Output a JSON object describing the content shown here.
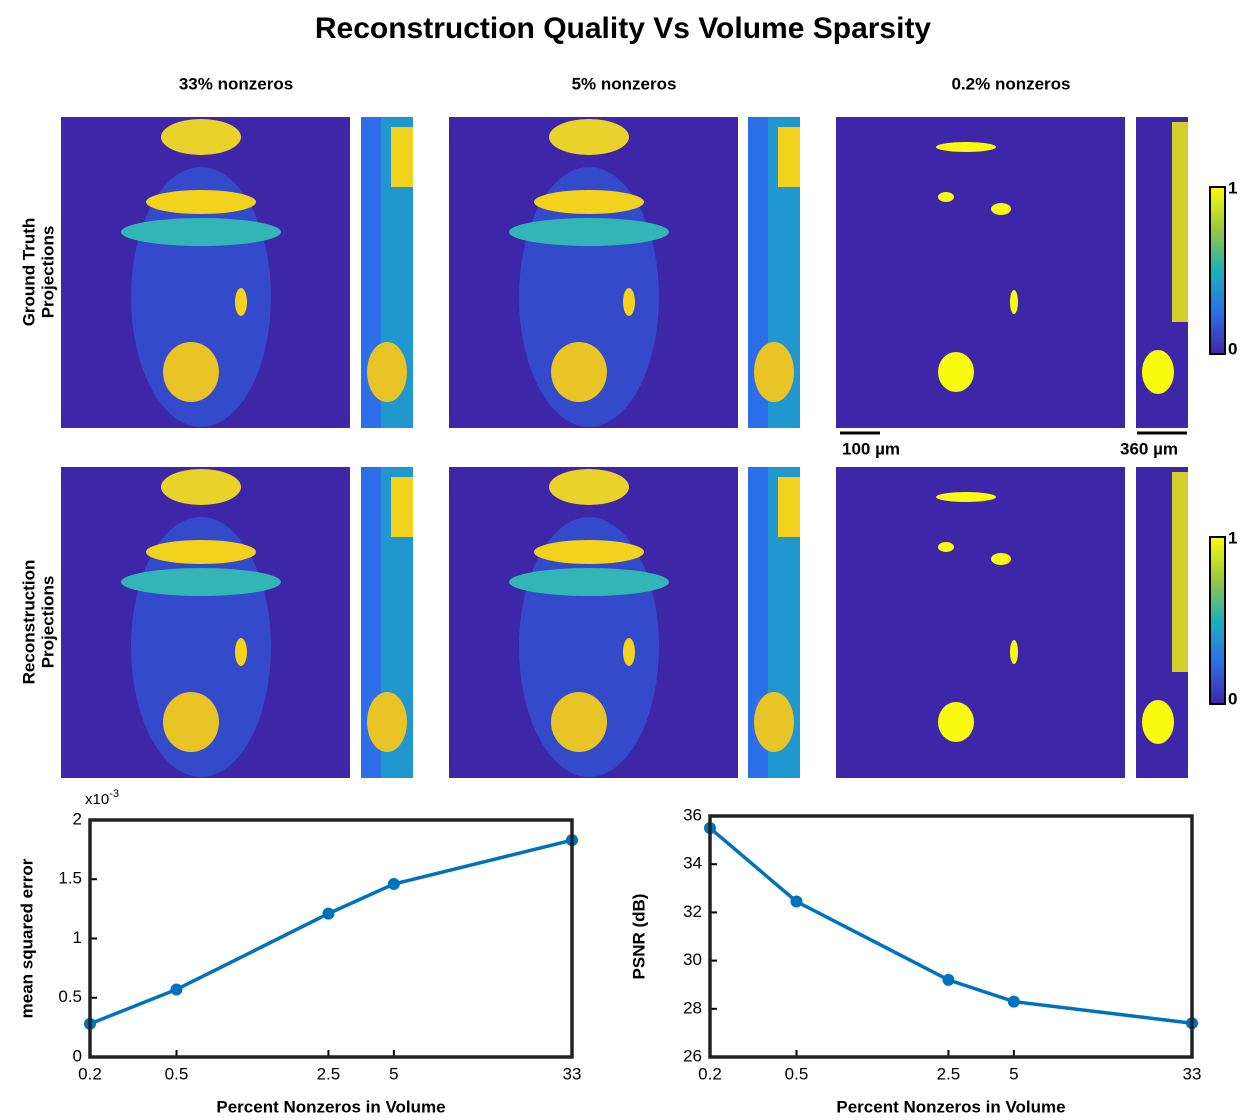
{
  "figure": {
    "title": "Reconstruction Quality Vs Volume Sparsity",
    "columns": [
      "33% nonzeros",
      "5% nonzeros",
      "0.2% nonzeros"
    ],
    "rows": [
      [
        "Ground Truth",
        "Projections"
      ],
      [
        "Reconstruction",
        "Projections"
      ]
    ],
    "scale_bars": [
      "100 µm",
      "360 µm"
    ],
    "colorbars": [
      {
        "ticks": [
          0,
          1
        ]
      },
      {
        "ticks": [
          0,
          1
        ]
      }
    ]
  },
  "chart_data": [
    {
      "type": "line",
      "y_label": "mean squared error",
      "x_label": "Percent Nonzeros in Volume",
      "y_multiplier": "x10",
      "y_multiplier_exponent": "-3",
      "x": [
        0.2,
        0.5,
        2.5,
        5,
        33
      ],
      "values": [
        0.28,
        0.57,
        1.21,
        1.46,
        1.83
      ],
      "color": "#0072bd",
      "x_scale": "log",
      "xlim": [
        0.2,
        33
      ],
      "xticks": [
        0.2,
        0.5,
        2.5,
        5,
        33
      ],
      "ylim": [
        0,
        2
      ],
      "yticks": [
        0,
        0.5,
        1,
        1.5,
        2
      ],
      "grid": false
    },
    {
      "type": "line",
      "y_label": "PSNR (dB)",
      "x_label": "Percent Nonzeros in Volume",
      "x": [
        0.2,
        0.5,
        2.5,
        5,
        33
      ],
      "values": [
        35.5,
        32.45,
        29.2,
        28.3,
        27.4
      ],
      "color": "#0072bd",
      "x_scale": "log",
      "xlim": [
        0.2,
        33
      ],
      "xticks": [
        0.2,
        0.5,
        2.5,
        5,
        33
      ],
      "ylim": [
        26,
        36
      ],
      "yticks": [
        26,
        28,
        30,
        32,
        34,
        36
      ],
      "grid": false
    }
  ]
}
